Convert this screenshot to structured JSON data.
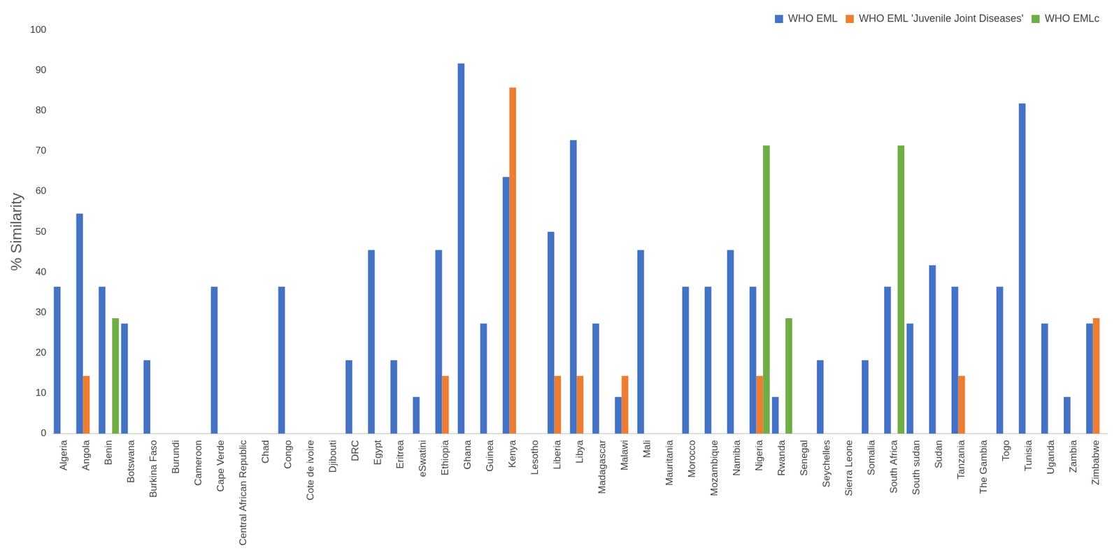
{
  "chart_data": {
    "type": "bar",
    "y_label": "% Similarity",
    "categories": [
      "Algeria",
      "Angola",
      "Benin",
      "Botswana",
      "Burkina Faso",
      "Burundi",
      "Cameroon",
      "Cape Verde",
      "Central African Republic",
      "Chad",
      "Congo",
      "Cote de ivoire",
      "Djibouti",
      "DRC",
      "Egypt",
      "Eritrea",
      "eSwatini",
      "Ethiopia",
      "Ghana",
      "Guinea",
      "Kenya",
      "Lesotho",
      "Liberia",
      "Libya",
      "Madagascar",
      "Malawi",
      "Mali",
      "Mauritania",
      "Morocco",
      "Mozambique",
      "Namibia",
      "Nigeria",
      "Rwanda",
      "Senegal",
      "Seychelles",
      "Sierra Leone",
      "Somalia",
      "South Africa",
      "South sudan",
      "Sudan",
      "Tanzania",
      "The Gambia",
      "Togo",
      "Tunisia",
      "Uganda",
      "Zambia",
      "Zimbabwe"
    ],
    "series": [
      {
        "name": "WHO EML",
        "color": "#4472c4",
        "values": [
          36.4,
          54.5,
          36.4,
          27.3,
          18.2,
          0,
          0,
          36.4,
          0,
          0,
          36.4,
          0,
          0,
          18.2,
          45.5,
          18.2,
          9.1,
          45.5,
          91.7,
          27.3,
          63.6,
          0,
          50,
          72.7,
          27.3,
          9.1,
          45.5,
          0,
          36.4,
          36.4,
          45.5,
          36.4,
          9.1,
          0,
          18.2,
          0,
          18.2,
          36.4,
          27.3,
          41.7,
          36.4,
          0,
          36.4,
          81.8,
          27.3,
          9.1,
          27.3
        ]
      },
      {
        "name": "WHO EML 'Juvenile Joint Diseases'",
        "color": "#ed7d31",
        "values": [
          0,
          14.3,
          0,
          0,
          0,
          0,
          0,
          0,
          0,
          0,
          0,
          0,
          0,
          0,
          0,
          0,
          0,
          14.3,
          0,
          0,
          85.7,
          0,
          14.3,
          14.3,
          0,
          14.3,
          0,
          0,
          0,
          0,
          0,
          14.3,
          0,
          0,
          0,
          0,
          0,
          0,
          0,
          0,
          14.3,
          0,
          0,
          0,
          0,
          0,
          28.6
        ]
      },
      {
        "name": "WHO EMLc",
        "color": "#70ad47",
        "values": [
          0,
          0,
          28.6,
          0,
          0,
          0,
          0,
          0,
          0,
          0,
          0,
          0,
          0,
          0,
          0,
          0,
          0,
          0,
          0,
          0,
          0,
          0,
          0,
          0,
          0,
          0,
          0,
          0,
          0,
          0,
          0,
          71.4,
          28.6,
          0,
          0,
          0,
          0,
          71.4,
          0,
          0,
          0,
          0,
          0,
          0,
          0,
          0,
          0
        ]
      }
    ],
    "ylim": [
      0,
      100
    ],
    "yticks": [
      0,
      10,
      20,
      30,
      40,
      50,
      60,
      70,
      80,
      90,
      100
    ],
    "grid": false,
    "legend": "top-right"
  }
}
